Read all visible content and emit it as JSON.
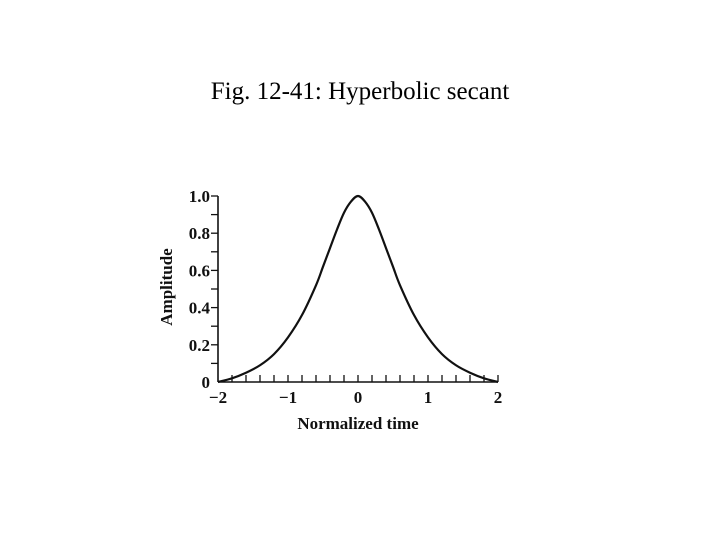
{
  "page": {
    "title": "Fig. 12-41: Hyperbolic secant"
  },
  "chart_data": {
    "type": "line",
    "title": "",
    "xlabel": "Normalized time",
    "ylabel": "Amplitude",
    "xlim": [
      -2,
      2
    ],
    "ylim": [
      0,
      1.0
    ],
    "x_ticks": [
      -2,
      -1,
      0,
      1,
      2
    ],
    "x_tick_labels": [
      "−2",
      "−1",
      "0",
      "1",
      "2"
    ],
    "y_ticks": [
      0,
      0.2,
      0.4,
      0.6,
      0.8,
      1.0
    ],
    "y_tick_labels": [
      "0",
      "0.2",
      "0.4",
      "0.6",
      "0.8",
      "1.0"
    ],
    "x_minor_step": 0.2,
    "y_minor_step": 0.1,
    "grid": false,
    "legend": "none",
    "series": [
      {
        "x": [
          -2.0,
          -1.8,
          -1.6,
          -1.4,
          -1.2,
          -1.0,
          -0.8,
          -0.6,
          -0.5,
          -0.4,
          -0.3,
          -0.2,
          -0.1,
          0.0,
          0.1,
          0.2,
          0.3,
          0.4,
          0.5,
          0.6,
          0.8,
          1.0,
          1.2,
          1.4,
          1.6,
          1.8,
          2.0
        ],
        "y": [
          0.0,
          0.02,
          0.05,
          0.09,
          0.15,
          0.24,
          0.36,
          0.52,
          0.62,
          0.72,
          0.82,
          0.91,
          0.97,
          1.0,
          0.97,
          0.91,
          0.82,
          0.72,
          0.62,
          0.52,
          0.36,
          0.24,
          0.15,
          0.09,
          0.05,
          0.02,
          0.0
        ]
      }
    ],
    "colors": {
      "line": "#111111",
      "axis": "#111111"
    }
  }
}
